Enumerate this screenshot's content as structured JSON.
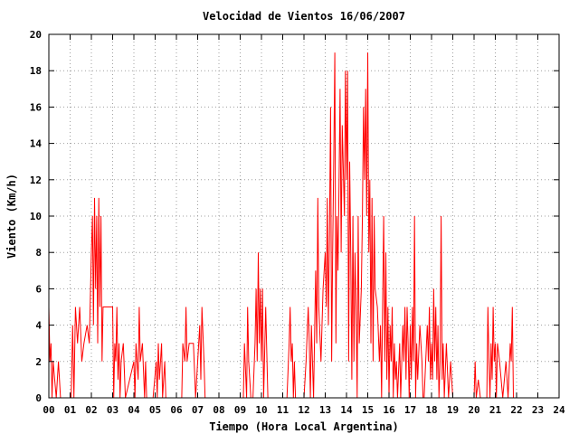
{
  "chart_data": {
    "type": "line",
    "title": "Velocidad de Vientos 16/06/2007",
    "xlabel": "Tiempo (Hora Local Argentina)",
    "ylabel": "Viento (Km/h)",
    "xlim": [
      0,
      24
    ],
    "ylim": [
      0,
      20
    ],
    "xticks": [
      "00",
      "01",
      "02",
      "03",
      "04",
      "05",
      "06",
      "07",
      "08",
      "09",
      "10",
      "11",
      "12",
      "13",
      "14",
      "15",
      "16",
      "17",
      "18",
      "19",
      "20",
      "21",
      "22",
      "23",
      "24"
    ],
    "yticks": [
      0,
      2,
      4,
      6,
      8,
      10,
      12,
      14,
      16,
      18,
      20
    ],
    "grid": true,
    "series": [
      {
        "color": "#ff0000",
        "points": [
          [
            0.0,
            5
          ],
          [
            0.05,
            2
          ],
          [
            0.1,
            3
          ],
          [
            0.15,
            0
          ],
          [
            0.2,
            2
          ],
          [
            0.35,
            0
          ],
          [
            0.45,
            2
          ],
          [
            0.55,
            0
          ],
          [
            0.7,
            0
          ],
          [
            1.05,
            0
          ],
          [
            1.12,
            4
          ],
          [
            1.18,
            0
          ],
          [
            1.25,
            5
          ],
          [
            1.35,
            3
          ],
          [
            1.45,
            5
          ],
          [
            1.55,
            2
          ],
          [
            1.65,
            3
          ],
          [
            1.8,
            4
          ],
          [
            1.9,
            3
          ],
          [
            2.0,
            8
          ],
          [
            2.05,
            10
          ],
          [
            2.1,
            4
          ],
          [
            2.15,
            11
          ],
          [
            2.2,
            6
          ],
          [
            2.25,
            10
          ],
          [
            2.3,
            3
          ],
          [
            2.35,
            11
          ],
          [
            2.4,
            5
          ],
          [
            2.45,
            10
          ],
          [
            2.5,
            2
          ],
          [
            2.55,
            5
          ],
          [
            2.7,
            5
          ],
          [
            3.0,
            5
          ],
          [
            3.05,
            0
          ],
          [
            3.1,
            3
          ],
          [
            3.15,
            2
          ],
          [
            3.2,
            5
          ],
          [
            3.25,
            1
          ],
          [
            3.3,
            3
          ],
          [
            3.35,
            0
          ],
          [
            3.4,
            2
          ],
          [
            3.5,
            3
          ],
          [
            3.6,
            0
          ],
          [
            3.8,
            1
          ],
          [
            4.0,
            2
          ],
          [
            4.05,
            0
          ],
          [
            4.1,
            3
          ],
          [
            4.2,
            1
          ],
          [
            4.25,
            5
          ],
          [
            4.3,
            2
          ],
          [
            4.4,
            3
          ],
          [
            4.5,
            0
          ],
          [
            4.55,
            2
          ],
          [
            4.6,
            0
          ],
          [
            4.9,
            0
          ],
          [
            5.05,
            2
          ],
          [
            5.1,
            0
          ],
          [
            5.15,
            3
          ],
          [
            5.2,
            1
          ],
          [
            5.3,
            3
          ],
          [
            5.35,
            0
          ],
          [
            5.45,
            2
          ],
          [
            5.5,
            0
          ],
          [
            6.25,
            0
          ],
          [
            6.3,
            3
          ],
          [
            6.4,
            2
          ],
          [
            6.45,
            5
          ],
          [
            6.5,
            2
          ],
          [
            6.6,
            3
          ],
          [
            6.8,
            3
          ],
          [
            6.9,
            0
          ],
          [
            7.0,
            2
          ],
          [
            7.1,
            4
          ],
          [
            7.15,
            1
          ],
          [
            7.2,
            5
          ],
          [
            7.3,
            2
          ],
          [
            7.35,
            0
          ],
          [
            9.15,
            0
          ],
          [
            9.2,
            3
          ],
          [
            9.3,
            0
          ],
          [
            9.35,
            5
          ],
          [
            9.4,
            2
          ],
          [
            9.5,
            0
          ],
          [
            9.6,
            0
          ],
          [
            9.7,
            3
          ],
          [
            9.75,
            6
          ],
          [
            9.8,
            2
          ],
          [
            9.85,
            8
          ],
          [
            9.9,
            3
          ],
          [
            9.95,
            6
          ],
          [
            10.0,
            2
          ],
          [
            10.05,
            6
          ],
          [
            10.1,
            0
          ],
          [
            10.2,
            5
          ],
          [
            10.3,
            0
          ],
          [
            11.2,
            0
          ],
          [
            11.3,
            3
          ],
          [
            11.35,
            5
          ],
          [
            11.4,
            2
          ],
          [
            11.45,
            3
          ],
          [
            11.5,
            0
          ],
          [
            11.55,
            2
          ],
          [
            11.6,
            0
          ],
          [
            12.0,
            0
          ],
          [
            12.1,
            2
          ],
          [
            12.2,
            5
          ],
          [
            12.25,
            3
          ],
          [
            12.3,
            0
          ],
          [
            12.35,
            4
          ],
          [
            12.4,
            2
          ],
          [
            12.45,
            0
          ],
          [
            12.55,
            7
          ],
          [
            12.6,
            3
          ],
          [
            12.65,
            11
          ],
          [
            12.7,
            5
          ],
          [
            12.8,
            2
          ],
          [
            12.9,
            6
          ],
          [
            13.0,
            8
          ],
          [
            13.05,
            5
          ],
          [
            13.1,
            11
          ],
          [
            13.15,
            4
          ],
          [
            13.2,
            9
          ],
          [
            13.25,
            16
          ],
          [
            13.3,
            2
          ],
          [
            13.35,
            8
          ],
          [
            13.4,
            13
          ],
          [
            13.45,
            19
          ],
          [
            13.5,
            3
          ],
          [
            13.55,
            10
          ],
          [
            13.6,
            7
          ],
          [
            13.65,
            12
          ],
          [
            13.7,
            17
          ],
          [
            13.75,
            8
          ],
          [
            13.8,
            15
          ],
          [
            13.9,
            10
          ],
          [
            13.95,
            18
          ],
          [
            14.0,
            12
          ],
          [
            14.05,
            18
          ],
          [
            14.1,
            2
          ],
          [
            14.15,
            13
          ],
          [
            14.2,
            8
          ],
          [
            14.25,
            1
          ],
          [
            14.3,
            10
          ],
          [
            14.35,
            2
          ],
          [
            14.4,
            8
          ],
          [
            14.45,
            5
          ],
          [
            14.5,
            0
          ],
          [
            14.55,
            10
          ],
          [
            14.6,
            3
          ],
          [
            14.7,
            6
          ],
          [
            14.75,
            10
          ],
          [
            14.8,
            16
          ],
          [
            14.85,
            12
          ],
          [
            14.9,
            17
          ],
          [
            14.95,
            10
          ],
          [
            15.0,
            19
          ],
          [
            15.05,
            8
          ],
          [
            15.1,
            12
          ],
          [
            15.15,
            3
          ],
          [
            15.2,
            11
          ],
          [
            15.25,
            2
          ],
          [
            15.3,
            10
          ],
          [
            15.35,
            6
          ],
          [
            15.45,
            5
          ],
          [
            15.55,
            2
          ],
          [
            15.6,
            4
          ],
          [
            15.65,
            0
          ],
          [
            15.7,
            5
          ],
          [
            15.75,
            10
          ],
          [
            15.8,
            2
          ],
          [
            15.85,
            8
          ],
          [
            15.9,
            1
          ],
          [
            15.95,
            5
          ],
          [
            16.0,
            0
          ],
          [
            16.05,
            4
          ],
          [
            16.1,
            2
          ],
          [
            16.15,
            5
          ],
          [
            16.2,
            0
          ],
          [
            16.25,
            3
          ],
          [
            16.3,
            1
          ],
          [
            16.35,
            2
          ],
          [
            16.4,
            0
          ],
          [
            16.5,
            3
          ],
          [
            16.55,
            0
          ],
          [
            16.65,
            4
          ],
          [
            16.7,
            2
          ],
          [
            16.75,
            5
          ],
          [
            16.8,
            1
          ],
          [
            16.85,
            5
          ],
          [
            16.9,
            3
          ],
          [
            16.95,
            0
          ],
          [
            17.0,
            4
          ],
          [
            17.05,
            1
          ],
          [
            17.1,
            5
          ],
          [
            17.15,
            2
          ],
          [
            17.2,
            10
          ],
          [
            17.25,
            0
          ],
          [
            17.3,
            3
          ],
          [
            17.35,
            1
          ],
          [
            17.45,
            4
          ],
          [
            17.55,
            2
          ],
          [
            17.6,
            0
          ],
          [
            17.65,
            0
          ],
          [
            17.8,
            4
          ],
          [
            17.85,
            2
          ],
          [
            17.9,
            5
          ],
          [
            17.95,
            1
          ],
          [
            18.0,
            3
          ],
          [
            18.05,
            1
          ],
          [
            18.1,
            6
          ],
          [
            18.15,
            2
          ],
          [
            18.2,
            5
          ],
          [
            18.25,
            1
          ],
          [
            18.3,
            4
          ],
          [
            18.35,
            0
          ],
          [
            18.4,
            2
          ],
          [
            18.45,
            10
          ],
          [
            18.5,
            1
          ],
          [
            18.55,
            3
          ],
          [
            18.6,
            0
          ],
          [
            18.7,
            3
          ],
          [
            18.8,
            0
          ],
          [
            18.9,
            2
          ],
          [
            19.0,
            0
          ],
          [
            20.0,
            0
          ],
          [
            20.05,
            2
          ],
          [
            20.1,
            0
          ],
          [
            20.2,
            1
          ],
          [
            20.3,
            0
          ],
          [
            20.6,
            0
          ],
          [
            20.65,
            5
          ],
          [
            20.7,
            2
          ],
          [
            20.75,
            0
          ],
          [
            20.8,
            3
          ],
          [
            20.85,
            1
          ],
          [
            20.9,
            5
          ],
          [
            20.95,
            2
          ],
          [
            21.0,
            3
          ],
          [
            21.05,
            0
          ],
          [
            21.1,
            3
          ],
          [
            21.2,
            2
          ],
          [
            21.35,
            0
          ],
          [
            21.5,
            2
          ],
          [
            21.6,
            0
          ],
          [
            21.7,
            3
          ],
          [
            21.75,
            2
          ],
          [
            21.8,
            5
          ],
          [
            21.85,
            0
          ]
        ]
      }
    ]
  }
}
